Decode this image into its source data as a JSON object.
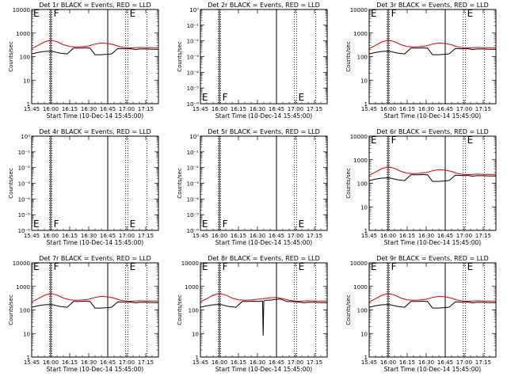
{
  "chart_data": [
    {
      "type": "line",
      "title": "Det 1r BLACK = Events, RED = LLD",
      "scale": "log",
      "ylim": [
        1,
        10000
      ],
      "ylabel": "Counts/sec",
      "xlabel": "Start Time (10-Dec-14 15:45:00)",
      "x_ticks": [
        "15:45",
        "16:00",
        "16:15",
        "16:30",
        "16:45",
        "17:00",
        "17:15"
      ],
      "y_ticks": [
        "1",
        "10",
        "100",
        "1000",
        "10000"
      ],
      "flags": [
        {
          "text": "E",
          "x": "15:45"
        },
        {
          "text": "F",
          "x": "16:01"
        },
        {
          "text": "E",
          "x": "17:01"
        }
      ],
      "series": [
        {
          "name": "Events",
          "color": "#000000",
          "x": [
            "15:45",
            "15:50",
            "15:55",
            "16:00",
            "16:02",
            "16:05",
            "16:08",
            "16:13",
            "16:18",
            "16:23",
            "16:27",
            "16:31",
            "16:35",
            "16:40",
            "16:44",
            "16:48",
            "16:53",
            "16:58",
            "17:03",
            "17:07",
            "17:10",
            "17:15",
            "17:20",
            "17:25"
          ],
          "y": [
            130,
            150,
            165,
            170,
            165,
            150,
            140,
            130,
            230,
            230,
            235,
            230,
            120,
            120,
            125,
            130,
            220,
            215,
            215,
            200,
            210,
            210,
            205,
            205
          ]
        },
        {
          "name": "LLD",
          "color": "#e00000",
          "x": [
            "15:45",
            "15:50",
            "15:55",
            "16:00",
            "16:05",
            "16:10",
            "16:15",
            "16:20",
            "16:25",
            "16:30",
            "16:35",
            "16:40",
            "16:45",
            "16:50",
            "16:55",
            "17:00",
            "17:03",
            "17:07",
            "17:10",
            "17:15",
            "17:20",
            "17:25"
          ],
          "y": [
            220,
            300,
            420,
            500,
            430,
            320,
            270,
            260,
            265,
            285,
            340,
            380,
            360,
            320,
            260,
            240,
            235,
            240,
            245,
            240,
            240,
            240
          ]
        }
      ]
    },
    {
      "type": "line",
      "title": "Det 2r BLACK = Events, RED = LLD",
      "scale": "log",
      "ylim": [
        1e-06,
        1
      ],
      "ylabel": "Counts/sec",
      "xlabel": "Start Time (10-Dec-14 15:45:00)",
      "x_ticks": [
        "15:45",
        "16:00",
        "16:15",
        "16:30",
        "16:45",
        "17:00",
        "17:15"
      ],
      "y_ticks": [
        "10⁻⁶",
        "10⁻⁵",
        "10⁻⁴",
        "10⁻³",
        "10⁻²",
        "10⁻¹",
        "10⁰"
      ],
      "flags": [
        {
          "text": "E",
          "x": "15:45"
        },
        {
          "text": "F",
          "x": "16:01"
        },
        {
          "text": "E",
          "x": "17:01"
        }
      ],
      "series": []
    },
    {
      "type": "line",
      "title": "Det 3r BLACK = Events, RED = LLD",
      "scale": "log",
      "ylim": [
        1,
        10000
      ],
      "ylabel": "Counts/sec",
      "xlabel": "Start Time (10-Dec-14 15:45:00)",
      "x_ticks": [
        "15:45",
        "16:00",
        "16:15",
        "16:30",
        "16:45",
        "17:00",
        "17:15"
      ],
      "y_ticks": [
        "1",
        "10",
        "100",
        "1000",
        "10000"
      ],
      "flags": [
        {
          "text": "E",
          "x": "15:45"
        },
        {
          "text": "F",
          "x": "16:01"
        },
        {
          "text": "E",
          "x": "17:01"
        }
      ],
      "series": [
        {
          "name": "Events",
          "color": "#000000",
          "x": [
            "15:45",
            "15:50",
            "15:55",
            "16:00",
            "16:02",
            "16:05",
            "16:08",
            "16:13",
            "16:18",
            "16:23",
            "16:27",
            "16:31",
            "16:35",
            "16:40",
            "16:44",
            "16:48",
            "16:53",
            "16:58",
            "17:03",
            "17:07",
            "17:10",
            "17:15",
            "17:20",
            "17:25"
          ],
          "y": [
            130,
            150,
            165,
            170,
            165,
            150,
            140,
            130,
            230,
            230,
            235,
            230,
            120,
            120,
            125,
            130,
            220,
            215,
            215,
            200,
            210,
            210,
            205,
            205
          ]
        },
        {
          "name": "LLD",
          "color": "#e00000",
          "x": [
            "15:45",
            "15:50",
            "15:55",
            "16:00",
            "16:05",
            "16:10",
            "16:15",
            "16:20",
            "16:25",
            "16:30",
            "16:35",
            "16:40",
            "16:45",
            "16:50",
            "16:55",
            "17:00",
            "17:03",
            "17:07",
            "17:10",
            "17:15",
            "17:20",
            "17:25"
          ],
          "y": [
            220,
            300,
            420,
            500,
            430,
            320,
            270,
            260,
            265,
            285,
            340,
            380,
            360,
            320,
            260,
            240,
            235,
            240,
            245,
            240,
            240,
            240
          ]
        }
      ]
    },
    {
      "type": "line",
      "title": "Det 4r BLACK = Events, RED = LLD",
      "scale": "log",
      "ylim": [
        1e-06,
        1
      ],
      "ylabel": "Counts/sec",
      "xlabel": "Start Time (10-Dec-14 15:45:00)",
      "x_ticks": [
        "15:45",
        "16:00",
        "16:15",
        "16:30",
        "16:45",
        "17:00",
        "17:15"
      ],
      "y_ticks": [
        "10⁻⁶",
        "10⁻⁵",
        "10⁻⁴",
        "10⁻³",
        "10⁻²",
        "10⁻¹",
        "10⁰"
      ],
      "flags": [
        {
          "text": "E",
          "x": "15:45"
        },
        {
          "text": "F",
          "x": "16:01"
        },
        {
          "text": "E",
          "x": "17:01"
        }
      ],
      "series": []
    },
    {
      "type": "line",
      "title": "Det 5r BLACK = Events, RED = LLD",
      "scale": "log",
      "ylim": [
        1e-06,
        1
      ],
      "ylabel": "Counts/sec",
      "xlabel": "Start Time (10-Dec-14 15:45:00)",
      "x_ticks": [
        "15:45",
        "16:00",
        "16:15",
        "16:30",
        "16:45",
        "17:00",
        "17:15"
      ],
      "y_ticks": [
        "10⁻⁶",
        "10⁻⁵",
        "10⁻⁴",
        "10⁻³",
        "10⁻²",
        "10⁻¹",
        "10⁰"
      ],
      "flags": [
        {
          "text": "E",
          "x": "15:45"
        },
        {
          "text": "F",
          "x": "16:01"
        },
        {
          "text": "E",
          "x": "17:01"
        }
      ],
      "series": []
    },
    {
      "type": "line",
      "title": "Det 6r BLACK = Events, RED = LLD",
      "scale": "log",
      "ylim": [
        1,
        10000
      ],
      "ylabel": "Counts/sec",
      "xlabel": "Start Time (10-Dec-14 15:45:00)",
      "x_ticks": [
        "15:45",
        "16:00",
        "16:15",
        "16:30",
        "16:45",
        "17:00",
        "17:15"
      ],
      "y_ticks": [
        "1",
        "10",
        "100",
        "1000",
        "10000"
      ],
      "flags": [
        {
          "text": "E",
          "x": "15:45"
        },
        {
          "text": "F",
          "x": "16:01"
        },
        {
          "text": "E",
          "x": "17:01"
        }
      ],
      "series": [
        {
          "name": "Events",
          "color": "#000000",
          "x": [
            "15:45",
            "15:50",
            "15:55",
            "16:00",
            "16:02",
            "16:05",
            "16:08",
            "16:13",
            "16:18",
            "16:23",
            "16:27",
            "16:31",
            "16:35",
            "16:40",
            "16:44",
            "16:48",
            "16:53",
            "16:58",
            "17:03",
            "17:07",
            "17:10",
            "17:15",
            "17:20",
            "17:25"
          ],
          "y": [
            130,
            150,
            165,
            170,
            165,
            150,
            140,
            130,
            230,
            230,
            235,
            230,
            120,
            120,
            125,
            130,
            220,
            215,
            215,
            200,
            210,
            210,
            205,
            205
          ]
        },
        {
          "name": "LLD",
          "color": "#e00000",
          "x": [
            "15:45",
            "15:50",
            "15:55",
            "16:00",
            "16:05",
            "16:10",
            "16:15",
            "16:20",
            "16:25",
            "16:30",
            "16:35",
            "16:40",
            "16:45",
            "16:50",
            "16:55",
            "17:00",
            "17:03",
            "17:07",
            "17:10",
            "17:15",
            "17:20",
            "17:25"
          ],
          "y": [
            220,
            300,
            420,
            500,
            430,
            320,
            270,
            260,
            265,
            285,
            340,
            380,
            360,
            320,
            260,
            240,
            235,
            240,
            245,
            240,
            240,
            240
          ]
        }
      ]
    },
    {
      "type": "line",
      "title": "Det 7r BLACK = Events, RED = LLD",
      "scale": "log",
      "ylim": [
        1,
        10000
      ],
      "ylabel": "Counts/sec",
      "xlabel": "Start Time (10-Dec-14 15:45:00)",
      "x_ticks": [
        "15:45",
        "16:00",
        "16:15",
        "16:30",
        "16:45",
        "17:00",
        "17:15"
      ],
      "y_ticks": [
        "1",
        "10",
        "100",
        "1000",
        "10000"
      ],
      "flags": [
        {
          "text": "E",
          "x": "15:45"
        },
        {
          "text": "F",
          "x": "16:01"
        },
        {
          "text": "E",
          "x": "17:01"
        }
      ],
      "series": [
        {
          "name": "Events",
          "color": "#000000",
          "x": [
            "15:45",
            "15:50",
            "15:55",
            "16:00",
            "16:02",
            "16:05",
            "16:08",
            "16:13",
            "16:18",
            "16:23",
            "16:27",
            "16:31",
            "16:35",
            "16:40",
            "16:44",
            "16:48",
            "16:53",
            "16:58",
            "17:03",
            "17:07",
            "17:10",
            "17:15",
            "17:20",
            "17:25"
          ],
          "y": [
            130,
            150,
            165,
            170,
            165,
            150,
            140,
            130,
            230,
            230,
            235,
            230,
            120,
            120,
            125,
            130,
            220,
            215,
            215,
            200,
            210,
            210,
            205,
            205
          ]
        },
        {
          "name": "LLD",
          "color": "#e00000",
          "x": [
            "15:45",
            "15:50",
            "15:55",
            "16:00",
            "16:05",
            "16:10",
            "16:15",
            "16:20",
            "16:25",
            "16:30",
            "16:35",
            "16:40",
            "16:45",
            "16:50",
            "16:55",
            "17:00",
            "17:03",
            "17:07",
            "17:10",
            "17:15",
            "17:20",
            "17:25"
          ],
          "y": [
            220,
            300,
            420,
            500,
            430,
            320,
            270,
            260,
            265,
            285,
            340,
            380,
            360,
            320,
            260,
            240,
            235,
            240,
            245,
            240,
            240,
            240
          ]
        }
      ]
    },
    {
      "type": "line",
      "title": "Det 8r BLACK = Events, RED = LLD",
      "scale": "log",
      "ylim": [
        1,
        10000
      ],
      "ylabel": "Counts/sec",
      "xlabel": "Start Time (10-Dec-14 15:45:00)",
      "x_ticks": [
        "15:45",
        "16:00",
        "16:15",
        "16:30",
        "16:45",
        "17:00",
        "17:15"
      ],
      "y_ticks": [
        "1",
        "10",
        "100",
        "1000",
        "10000"
      ],
      "flags": [
        {
          "text": "E",
          "x": "15:45"
        },
        {
          "text": "F",
          "x": "16:01"
        },
        {
          "text": "E",
          "x": "17:01"
        }
      ],
      "series": [
        {
          "name": "Events",
          "color": "#000000",
          "x": [
            "15:45",
            "15:50",
            "15:55",
            "16:00",
            "16:02",
            "16:05",
            "16:08",
            "16:13",
            "16:18",
            "16:23",
            "16:27",
            "16:31",
            "16:34",
            "16:34.5",
            "16:35",
            "16:37",
            "16:40",
            "16:44",
            "16:48",
            "16:53",
            "16:58",
            "17:03",
            "17:07",
            "17:10",
            "17:15",
            "17:20",
            "17:25"
          ],
          "y": [
            130,
            150,
            165,
            170,
            165,
            150,
            140,
            130,
            230,
            230,
            235,
            230,
            240,
            8,
            240,
            260,
            260,
            280,
            290,
            230,
            225,
            215,
            200,
            210,
            210,
            205,
            205
          ]
        },
        {
          "name": "LLD",
          "color": "#e00000",
          "x": [
            "15:45",
            "15:50",
            "15:55",
            "16:00",
            "16:05",
            "16:10",
            "16:15",
            "16:20",
            "16:25",
            "16:30",
            "16:35",
            "16:40",
            "16:45",
            "16:50",
            "16:55",
            "17:00",
            "17:03",
            "17:07",
            "17:10",
            "17:15",
            "17:20",
            "17:25"
          ],
          "y": [
            220,
            300,
            420,
            500,
            430,
            320,
            270,
            260,
            265,
            285,
            300,
            330,
            340,
            300,
            260,
            240,
            235,
            240,
            245,
            240,
            240,
            240
          ]
        }
      ]
    },
    {
      "type": "line",
      "title": "Det 9r BLACK = Events, RED = LLD",
      "scale": "log",
      "ylim": [
        1,
        10000
      ],
      "ylabel": "Counts/sec",
      "xlabel": "Start Time (10-Dec-14 15:45:00)",
      "x_ticks": [
        "15:45",
        "16:00",
        "16:15",
        "16:30",
        "16:45",
        "17:00",
        "17:15"
      ],
      "y_ticks": [
        "1",
        "10",
        "100",
        "1000",
        "10000"
      ],
      "flags": [
        {
          "text": "E",
          "x": "15:45"
        },
        {
          "text": "F",
          "x": "16:01"
        },
        {
          "text": "E",
          "x": "17:01"
        }
      ],
      "series": [
        {
          "name": "Events",
          "color": "#000000",
          "x": [
            "15:45",
            "15:50",
            "15:55",
            "16:00",
            "16:02",
            "16:05",
            "16:08",
            "16:13",
            "16:18",
            "16:23",
            "16:27",
            "16:31",
            "16:35",
            "16:40",
            "16:44",
            "16:48",
            "16:53",
            "16:58",
            "17:03",
            "17:07",
            "17:10",
            "17:15",
            "17:20",
            "17:25"
          ],
          "y": [
            130,
            150,
            165,
            170,
            165,
            150,
            140,
            130,
            230,
            230,
            235,
            230,
            120,
            120,
            125,
            130,
            220,
            215,
            215,
            200,
            210,
            210,
            205,
            205
          ]
        },
        {
          "name": "LLD",
          "color": "#e00000",
          "x": [
            "15:45",
            "15:50",
            "15:55",
            "16:00",
            "16:05",
            "16:10",
            "16:15",
            "16:20",
            "16:25",
            "16:30",
            "16:35",
            "16:40",
            "16:45",
            "16:50",
            "16:55",
            "17:00",
            "17:03",
            "17:07",
            "17:10",
            "17:15",
            "17:20",
            "17:25"
          ],
          "y": [
            220,
            300,
            420,
            500,
            430,
            320,
            270,
            260,
            265,
            285,
            340,
            380,
            360,
            320,
            260,
            240,
            235,
            240,
            245,
            240,
            240,
            240
          ]
        }
      ]
    }
  ],
  "markers": {
    "solid_lines": [
      "16:00",
      "16:45"
    ],
    "dotted_lines": [
      "15:59",
      "16:01",
      "16:59",
      "17:01",
      "17:16",
      "17:25"
    ]
  },
  "colors": {
    "events": "#000000",
    "lld": "#e00000",
    "background": "#ffffff"
  }
}
